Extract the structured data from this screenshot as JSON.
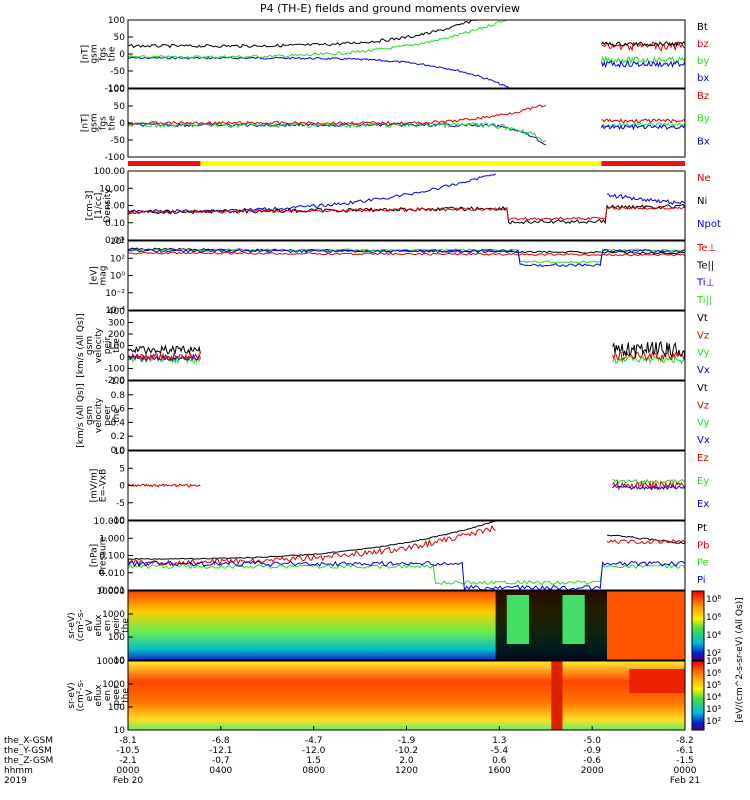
{
  "title": "P4 (TH-E) fields and ground moments overview",
  "colors": {
    "black": "#000000",
    "red": "#e00000",
    "green": "#22dd22",
    "blue": "#0000ee",
    "bar_red": "#ee1111",
    "bar_yellow": "#ffff00"
  },
  "panels": [
    {
      "id": "fgs",
      "ylabel": [
        "the",
        "fgs",
        "gsm",
        "[nT]"
      ],
      "ticks": [
        "100",
        "50",
        "0",
        "-50",
        "-100"
      ],
      "legend": [
        {
          "text": "Bt",
          "color": "black"
        },
        {
          "text": "bz",
          "color": "red"
        },
        {
          "text": "by",
          "color": "green"
        },
        {
          "text": "bx",
          "color": "blue"
        }
      ]
    },
    {
      "id": "fgs_dsl",
      "ylabel": [
        "the",
        "fgs",
        "gsm",
        "[nT]"
      ],
      "ticks": [
        "100",
        "50",
        "0",
        "-50",
        "-100"
      ],
      "legend": [
        {
          "text": "Bz",
          "color": "red"
        },
        {
          "text": "By",
          "color": "green"
        },
        {
          "text": "Bx",
          "color": "blue"
        }
      ]
    },
    {
      "id": "density",
      "ylabel": [
        "Density",
        "[1/cc]",
        "[cm-3]"
      ],
      "ticks": [
        "100.00",
        "10.00",
        "1.00",
        "0.10",
        "0.01"
      ],
      "legend": [
        {
          "text": "Ne",
          "color": "red"
        },
        {
          "text": "Ni",
          "color": "black"
        },
        {
          "text": "Npot",
          "color": "blue"
        }
      ]
    },
    {
      "id": "temp",
      "ylabel": [
        "mag",
        "[eV]"
      ],
      "ticks": [
        "10⁴",
        "10²",
        "10⁰",
        "10⁻²",
        "10⁻⁴"
      ],
      "legend": [
        {
          "text": "Te⊥",
          "color": "red"
        },
        {
          "text": "Te||",
          "color": "black"
        },
        {
          "text": "Ti⊥",
          "color": "blue"
        },
        {
          "text": "Ti||",
          "color": "green"
        }
      ]
    },
    {
      "id": "peir_vel",
      "ylabel": [
        "the",
        "peir",
        "velocity",
        "gsm",
        "[km/s (All Qs)]"
      ],
      "ticks": [
        "400",
        "300",
        "200",
        "100",
        "0",
        "-100",
        "-200"
      ],
      "legend": [
        {
          "text": "Vt",
          "color": "black"
        },
        {
          "text": "Vz",
          "color": "red"
        },
        {
          "text": "Vy",
          "color": "green"
        },
        {
          "text": "Vx",
          "color": "blue"
        }
      ]
    },
    {
      "id": "peer_vel",
      "ylabel": [
        "the",
        "peer",
        "velocity",
        "gsm",
        "[km/s (All Qs)]"
      ],
      "ticks": [
        "1.0",
        "0.8",
        "0.6",
        "0.4",
        "0.2",
        "0.0"
      ],
      "legend": [
        {
          "text": "Vt",
          "color": "black"
        },
        {
          "text": "Vz",
          "color": "red"
        },
        {
          "text": "Vy",
          "color": "green"
        },
        {
          "text": "Vx",
          "color": "blue"
        }
      ]
    },
    {
      "id": "efield",
      "ylabel": [
        "E=-VxB",
        "[mV/m]"
      ],
      "ticks": [
        "10",
        "5",
        "0",
        "-5",
        "-10"
      ],
      "legend": [
        {
          "text": "Ez",
          "color": "red"
        },
        {
          "text": "Ey",
          "color": "green"
        },
        {
          "text": "Ex",
          "color": "blue"
        }
      ]
    },
    {
      "id": "pressure",
      "ylabel": [
        "Pressure",
        "[nPa]"
      ],
      "ticks": [
        "10.000",
        "1.000",
        "0.100",
        "0.010",
        "0.001"
      ],
      "legend": [
        {
          "text": "Pt",
          "color": "black"
        },
        {
          "text": "Pb",
          "color": "red"
        },
        {
          "text": "Pe",
          "color": "green"
        },
        {
          "text": "Pi",
          "color": "blue"
        }
      ]
    },
    {
      "id": "peir_en",
      "ylabel": [
        "the",
        "peir",
        "en",
        "eflux",
        "eV",
        "(cm²-s-",
        "sr-eV)"
      ],
      "ticks": [
        "10000",
        "1000",
        "100",
        "10"
      ],
      "legend": []
    },
    {
      "id": "peer_en",
      "ylabel": [
        "the",
        "peer",
        "en",
        "eflux",
        "eV",
        "(cm²-s-",
        "sr-eV)"
      ],
      "ticks": [
        "10000",
        "1000",
        "100",
        "10"
      ],
      "legend": []
    }
  ],
  "colorbar": {
    "label": "[eV/(cm^2-s-sr-eV) (All Qs)]",
    "ticks": [
      "10⁸",
      "10⁶",
      "10⁴",
      "10²",
      "10⁸",
      "10⁶",
      "10⁵",
      "10⁴",
      "10³",
      "10²"
    ]
  },
  "time_axis": {
    "row_labels": [
      "the_X-GSM",
      "the_Y-GSM",
      "the_Z-GSM",
      "hhmm",
      "2019"
    ],
    "columns": [
      {
        "x": "-8.1",
        "y": "-10.5",
        "z": "-2.1",
        "hhmm": "0000",
        "date": "Feb 20"
      },
      {
        "x": "-6.8",
        "y": "-12.1",
        "z": "-0.7",
        "hhmm": "0400",
        "date": ""
      },
      {
        "x": "-4.7",
        "y": "-12.0",
        "z": "1.5",
        "hhmm": "0800",
        "date": ""
      },
      {
        "x": "-1.9",
        "y": "-10.2",
        "z": "2.0",
        "hhmm": "1200",
        "date": ""
      },
      {
        "x": "1.3",
        "y": "-5.4",
        "z": "0.6",
        "hhmm": "1600",
        "date": ""
      },
      {
        "x": "-5.0",
        "y": "-0.9",
        "z": "-0.6",
        "hhmm": "2000",
        "date": ""
      },
      {
        "x": "-8.2",
        "y": "-6.1",
        "z": "-1.5",
        "hhmm": "0000",
        "date": "Feb 21"
      }
    ]
  },
  "chart_data": {
    "type": "line",
    "title": "P4 (TH-E) fields and ground moments overview",
    "x": [
      "0000",
      "0400",
      "0800",
      "1200",
      "1600",
      "2000",
      "0000"
    ],
    "panels": [
      {
        "ylabel": "the fgs gsm [nT]",
        "ylim": [
          -100,
          100
        ],
        "series": [
          {
            "name": "Bt",
            "values": [
              15,
              14,
              22,
              50,
              100,
              40,
              25
            ]
          },
          {
            "name": "bz",
            "values": [
              15,
              14,
              22,
              50,
              90,
              35,
              20
            ]
          },
          {
            "name": "by",
            "values": [
              -8,
              -5,
              -2,
              25,
              60,
              -5,
              -10
            ]
          },
          {
            "name": "bx",
            "values": [
              -2,
              -3,
              -10,
              -20,
              -60,
              -30,
              -15
            ]
          }
        ]
      },
      {
        "ylabel": "Density [cm-3]",
        "ylim": [
          0.01,
          100
        ],
        "log": true,
        "series": [
          {
            "name": "Ne",
            "values": [
              0.3,
              0.35,
              0.4,
              0.5,
              0.2,
              0.5,
              0.4
            ]
          },
          {
            "name": "Ni",
            "values": [
              0.3,
              0.35,
              0.4,
              0.5,
              0.05,
              0.6,
              0.4
            ]
          },
          {
            "name": "Npot",
            "values": [
              0.2,
              0.3,
              0.5,
              1.0,
              100,
              1.0,
              2.0
            ]
          }
        ]
      },
      {
        "ylabel": "Pressure [nPa]",
        "ylim": [
          0.001,
          10
        ],
        "log": true,
        "series": [
          {
            "name": "Pt",
            "values": [
              0.2,
              0.3,
              0.5,
              1.0,
              10,
              2.0,
              1.0
            ]
          },
          {
            "name": "Pb",
            "values": [
              0.2,
              0.3,
              0.5,
              1.0,
              10,
              2.0,
              1.0
            ]
          },
          {
            "name": "Pe",
            "values": [
              0.05,
              0.04,
              0.05,
              0.03,
              0.005,
              0.05,
              0.1
            ]
          },
          {
            "name": "Pi",
            "values": [
              0.1,
              0.1,
              0.1,
              0.05,
              0.003,
              0.2,
              0.3
            ]
          }
        ]
      }
    ]
  }
}
